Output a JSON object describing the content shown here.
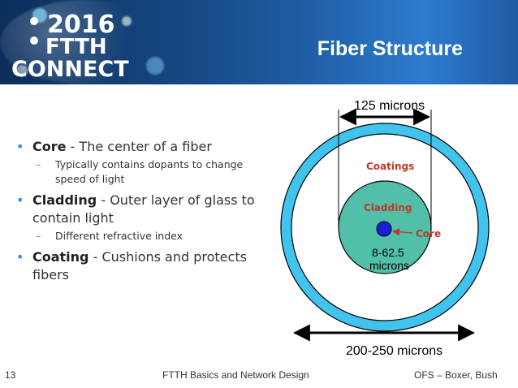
{
  "header": {
    "logo": {
      "year": "2016",
      "line1": "FTTH",
      "line2": "CONNECT"
    },
    "title": "Fiber Structure"
  },
  "bullets": [
    {
      "term": "Core",
      "text": " - The center of a fiber",
      "sub": "Typically contains dopants to change speed of light"
    },
    {
      "term": "Cladding",
      "text": " - Outer layer of glass to contain light",
      "sub": "Different refractive index"
    },
    {
      "term": "Coating",
      "text": " - Cushions and protects fibers",
      "sub": ""
    }
  ],
  "diagram": {
    "label_125": "125 microns",
    "label_coatings": "Coatings",
    "label_cladding": "Cladding",
    "label_core": "Core",
    "label_core_size_1": "8-62.5",
    "label_core_size_2": "microns",
    "label_outer": "200-250 microns",
    "colors": {
      "coating": "#40c4ee",
      "cladding": "#52bfa8",
      "core": "#1b1fd6",
      "accent_text": "#c0392b"
    }
  },
  "footer": {
    "page": "13",
    "center": "FTTH Basics and Network Design",
    "right": "OFS – Boxer, Bush"
  }
}
